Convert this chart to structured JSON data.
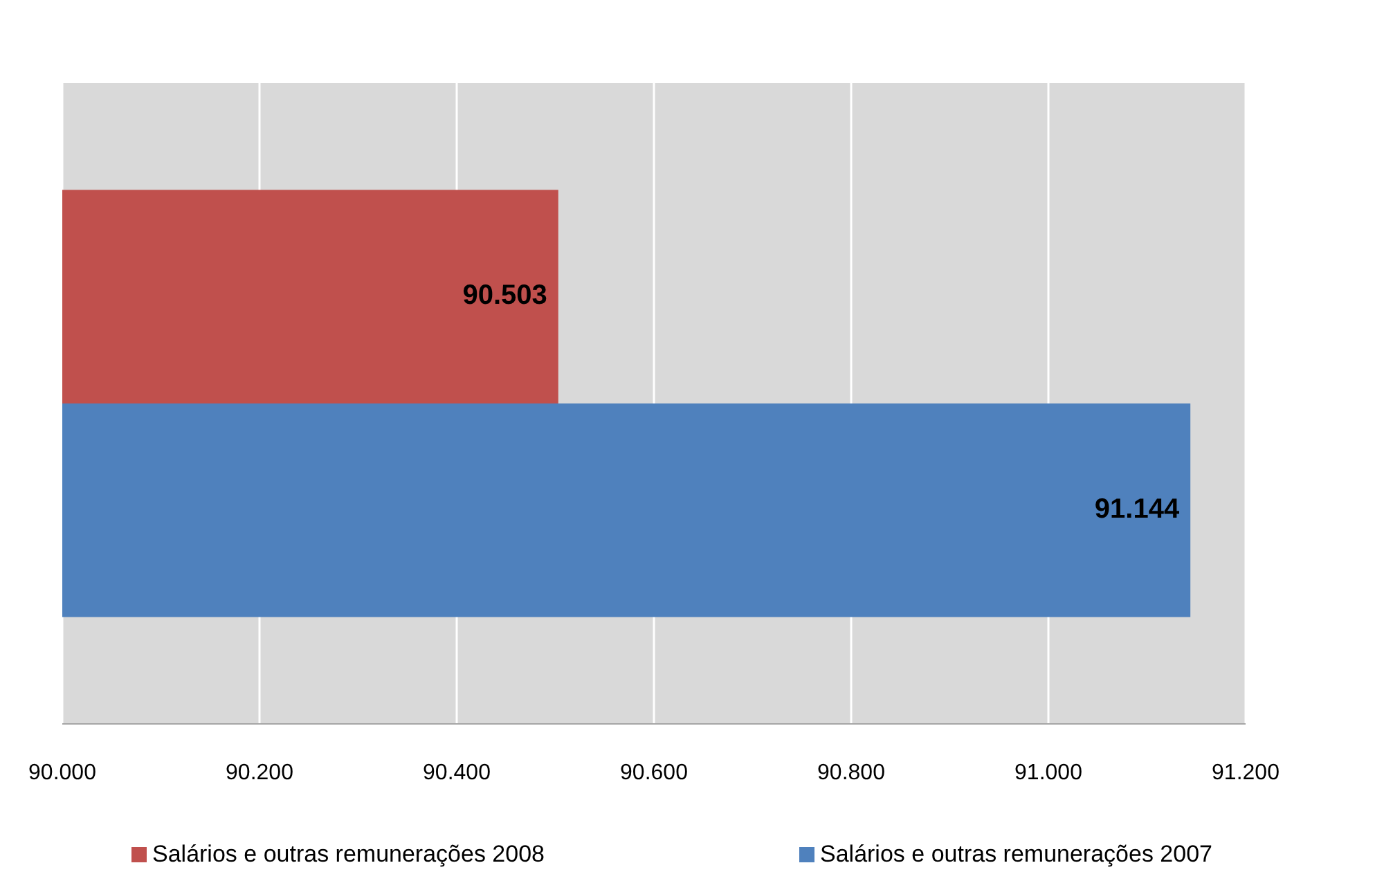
{
  "chart_data": {
    "type": "bar",
    "orientation": "horizontal",
    "categories": [
      null
    ],
    "series": [
      {
        "name": "Salários e outras remunerações 2008",
        "color": "#c0504d",
        "values": [
          90503
        ],
        "value_labels": [
          "90.503"
        ]
      },
      {
        "name": "Salários e outras remunerações 2007",
        "color": "#4f81bd",
        "values": [
          91144
        ],
        "value_labels": [
          "91.144"
        ]
      }
    ],
    "xlim": [
      90000,
      91200
    ],
    "xticks": [
      {
        "value": 90000,
        "label": "90.000"
      },
      {
        "value": 90200,
        "label": "90.200"
      },
      {
        "value": 90400,
        "label": "90.400"
      },
      {
        "value": 90600,
        "label": "90.600"
      },
      {
        "value": 90800,
        "label": "90.800"
      },
      {
        "value": 91000,
        "label": "91.000"
      },
      {
        "value": 91200,
        "label": "91.200"
      }
    ],
    "grid": "x",
    "legend": "bottom"
  }
}
